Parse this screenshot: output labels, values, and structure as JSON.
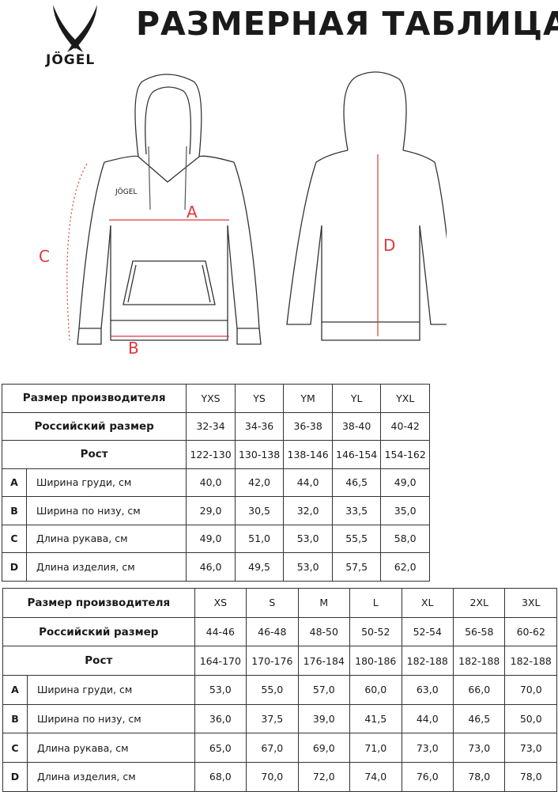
{
  "header": {
    "title": "РАЗМЕРНАЯ ТАБЛИЦА",
    "logo_text": "JÖGEL"
  },
  "drawing": {
    "front_logo_text": "JÖGEL",
    "markers": {
      "A": "A",
      "B": "B",
      "C": "C",
      "D": "D"
    },
    "marker_color": "#e0393e"
  },
  "tables": [
    {
      "header_label": "Размер производителя",
      "sizes": [
        "YXS",
        "YS",
        "YM",
        "YL",
        "YXL"
      ],
      "ru_label": "Российский размер",
      "ru_sizes": [
        "32-34",
        "34-36",
        "36-38",
        "38-40",
        "40-42"
      ],
      "height_label": "Рост",
      "heights": [
        "122-130",
        "130-138",
        "138-146",
        "146-154",
        "154-162"
      ],
      "rows": [
        {
          "letter": "A",
          "label": "Ширина груди, см",
          "values": [
            "40,0",
            "42,0",
            "44,0",
            "46,5",
            "49,0"
          ]
        },
        {
          "letter": "B",
          "label": "Ширина по низу, см",
          "values": [
            "29,0",
            "30,5",
            "32,0",
            "33,5",
            "35,0"
          ]
        },
        {
          "letter": "C",
          "label": "Длина рукава, см",
          "values": [
            "49,0",
            "51,0",
            "53,0",
            "55,5",
            "58,0"
          ]
        },
        {
          "letter": "D",
          "label": "Длина изделия, см",
          "values": [
            "46,0",
            "49,5",
            "53,0",
            "57,5",
            "62,0"
          ]
        }
      ]
    },
    {
      "header_label": "Размер производителя",
      "sizes": [
        "XS",
        "S",
        "M",
        "L",
        "XL",
        "2XL",
        "3XL"
      ],
      "ru_label": "Российский размер",
      "ru_sizes": [
        "44-46",
        "46-48",
        "48-50",
        "50-52",
        "52-54",
        "56-58",
        "60-62"
      ],
      "height_label": "Рост",
      "heights": [
        "164-170",
        "170-176",
        "176-184",
        "180-186",
        "182-188",
        "182-188",
        "182-188"
      ],
      "rows": [
        {
          "letter": "A",
          "label": "Ширина груди, см",
          "values": [
            "53,0",
            "55,0",
            "57,0",
            "60,0",
            "63,0",
            "66,0",
            "70,0"
          ]
        },
        {
          "letter": "B",
          "label": "Ширина по низу, см",
          "values": [
            "36,0",
            "37,5",
            "39,0",
            "41,5",
            "44,0",
            "46,5",
            "50,0"
          ]
        },
        {
          "letter": "C",
          "label": "Длина рукава, см",
          "values": [
            "65,0",
            "67,0",
            "69,0",
            "71,0",
            "73,0",
            "73,0",
            "73,0"
          ]
        },
        {
          "letter": "D",
          "label": "Длина изделия, см",
          "values": [
            "68,0",
            "70,0",
            "72,0",
            "74,0",
            "76,0",
            "78,0",
            "78,0"
          ]
        }
      ]
    }
  ]
}
